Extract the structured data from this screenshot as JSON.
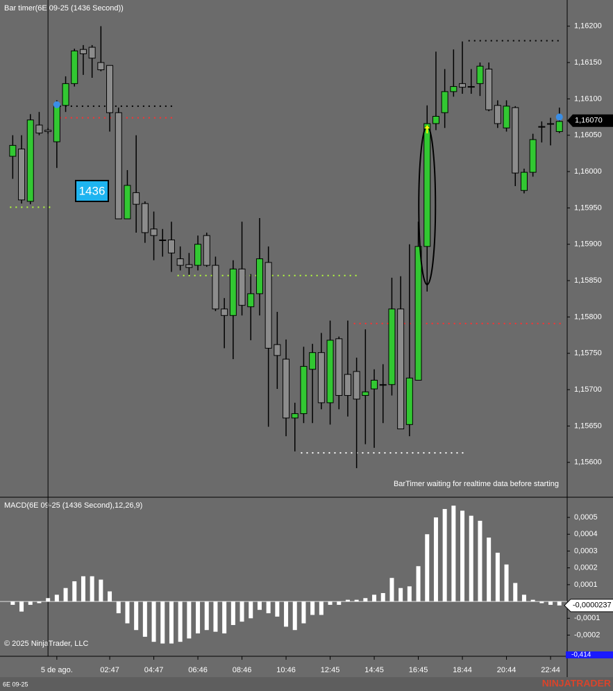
{
  "chart_data": [
    {
      "type": "candlestick",
      "title": "Bar timer(6E 09-25 (1436 Second))",
      "categories": [
        null,
        null,
        null,
        null,
        null,
        "5 de ago.",
        null,
        null,
        null,
        null,
        null,
        "02:47",
        null,
        null,
        null,
        null,
        "04:47",
        null,
        null,
        null,
        null,
        "06:46",
        null,
        null,
        null,
        null,
        "08:46",
        null,
        null,
        null,
        null,
        "10:46",
        null,
        null,
        null,
        null,
        "12:45",
        null,
        null,
        null,
        null,
        "14:45",
        null,
        null,
        null,
        null,
        "16:45",
        null,
        null,
        null,
        null,
        "18:44",
        null,
        null,
        null,
        null,
        "20:44",
        null,
        null,
        null,
        null,
        "22:44",
        null
      ],
      "open": [
        1.16021,
        1.16031,
        1.15959,
        1.16064,
        1.16057,
        1.16041,
        1.16091,
        1.16121,
        1.16168,
        1.16171,
        1.1615,
        1.16146,
        1.16081,
        1.15935,
        1.15971,
        1.15956,
        1.15921,
        1.15906,
        1.15906,
        1.1588,
        1.15872,
        1.15871,
        1.15912,
        1.15871,
        1.15811,
        1.15802,
        1.15866,
        1.15814,
        1.15832,
        1.15875,
        1.15762,
        1.15742,
        1.15661,
        1.15667,
        1.15728,
        1.15751,
        1.15682,
        1.1577,
        1.15721,
        1.15725,
        1.15692,
        1.15701,
        1.15707,
        1.15707,
        1.15811,
        1.15652,
        1.15713,
        1.15897,
        1.16066,
        1.16081,
        1.1611,
        1.16121,
        1.16117,
        1.16121,
        1.16141,
        1.16091,
        1.1606,
        1.16088,
        1.15974,
        1.15999,
        1.16062,
        1.16066,
        1.16055
      ],
      "high": [
        1.1605,
        1.1605,
        1.16079,
        1.16082,
        1.1606,
        1.16098,
        1.16131,
        1.16169,
        1.16174,
        1.16174,
        1.162,
        1.16146,
        1.16088,
        1.16002,
        1.1605,
        1.15959,
        1.15945,
        1.15921,
        1.15931,
        1.15897,
        1.15888,
        1.15912,
        1.15916,
        1.15883,
        1.15826,
        1.15878,
        1.15931,
        1.15859,
        1.15936,
        1.15897,
        1.15807,
        1.15769,
        1.15682,
        1.15759,
        1.15763,
        1.15778,
        1.15795,
        1.15773,
        1.15795,
        1.15744,
        1.15783,
        1.15728,
        1.15735,
        1.15854,
        1.15856,
        1.159,
        1.15931,
        1.16091,
        1.16165,
        1.16141,
        1.16168,
        1.16179,
        1.16141,
        1.1615,
        1.1615,
        1.16098,
        1.16098,
        1.1609,
        1.16004,
        1.16052,
        1.16069,
        1.16074,
        1.16088
      ],
      "low": [
        1.1599,
        1.15956,
        1.15955,
        1.1605,
        1.16052,
        1.16005,
        1.16082,
        1.16117,
        1.16133,
        1.16129,
        1.16138,
        1.16055,
        1.15935,
        1.15935,
        1.15916,
        1.15902,
        1.15878,
        1.15883,
        1.15862,
        1.15864,
        1.15858,
        1.15864,
        1.15869,
        1.15808,
        1.15757,
        1.15742,
        1.15802,
        1.15768,
        1.15802,
        1.15649,
        1.15701,
        1.15636,
        1.15615,
        1.15654,
        1.15654,
        1.15673,
        1.15652,
        1.15673,
        1.15663,
        1.15592,
        1.15625,
        1.1562,
        1.15654,
        1.15692,
        1.15646,
        1.15636,
        1.15713,
        1.15835,
        1.16057,
        1.1606,
        1.16103,
        1.16107,
        1.16107,
        1.16104,
        1.16083,
        1.1606,
        1.16055,
        1.1598,
        1.1597,
        1.15993,
        1.1604,
        1.16036,
        1.16053
      ],
      "close": [
        1.16036,
        1.15961,
        1.16071,
        1.16053,
        1.16055,
        1.16091,
        1.16121,
        1.16166,
        1.16162,
        1.16156,
        1.1614,
        1.16081,
        1.15935,
        1.15981,
        1.15955,
        1.15916,
        1.15912,
        1.15905,
        1.15888,
        1.15871,
        1.15868,
        1.159,
        1.15871,
        1.15811,
        1.15802,
        1.15866,
        1.15816,
        1.15832,
        1.1588,
        1.15757,
        1.15747,
        1.15661,
        1.15667,
        1.15732,
        1.15751,
        1.15682,
        1.15768,
        1.15692,
        1.15692,
        1.15687,
        1.15697,
        1.15713,
        1.15706,
        1.15811,
        1.15646,
        1.15716,
        1.15897,
        1.16066,
        1.16076,
        1.1611,
        1.16117,
        1.16116,
        1.16116,
        1.16145,
        1.16085,
        1.16066,
        1.1609,
        1.15998,
        1.15999,
        1.16044,
        1.16061,
        1.16065,
        1.16069
      ],
      "up_color": "#32c832",
      "down_color": "#8c8c8c",
      "ylim": [
        1.15552,
        1.16236
      ],
      "yticks": [
        {
          "value": 1.162,
          "label": "1,16200"
        },
        {
          "value": 1.1615,
          "label": "1,16150"
        },
        {
          "value": 1.161,
          "label": "1,16100"
        },
        {
          "value": 1.1605,
          "label": "1,16050"
        },
        {
          "value": 1.16,
          "label": "1,16000"
        },
        {
          "value": 1.1595,
          "label": "1,15950"
        },
        {
          "value": 1.159,
          "label": "1,15900"
        },
        {
          "value": 1.1585,
          "label": "1,15850"
        },
        {
          "value": 1.158,
          "label": "1,15800"
        },
        {
          "value": 1.1575,
          "label": "1,15750"
        },
        {
          "value": 1.157,
          "label": "1,15700"
        },
        {
          "value": 1.1565,
          "label": "1,15650"
        },
        {
          "value": 1.156,
          "label": "1,15600"
        }
      ],
      "levels": [
        {
          "value": 1.15951,
          "color": "#b4ff3c",
          "from": 0,
          "to": 4
        },
        {
          "value": 1.1609,
          "color": "#000000",
          "from": 5,
          "to": 18
        },
        {
          "value": 1.16074,
          "color": "#ff3030",
          "from": 5,
          "to": 18
        },
        {
          "value": 1.15857,
          "color": "#b4ff3c",
          "from": 19,
          "to": 39
        },
        {
          "value": 1.15613,
          "color": "#ffffff",
          "from": 33,
          "to": 51
        },
        {
          "value": 1.15791,
          "color": "#ff3030",
          "from": 39,
          "to": 62
        },
        {
          "value": 1.1618,
          "color": "#000000",
          "from": 52,
          "to": 62
        }
      ],
      "markers": [
        {
          "index": 5,
          "value": 1.16092
        },
        {
          "index": 62,
          "value": 1.16075
        }
      ],
      "marker_color": "#3a8ee6",
      "highlight_index": 47,
      "crosshair_index": 4,
      "last_price": {
        "value": 1.1607,
        "label": "1,16070"
      },
      "timer_label": "1436",
      "status": "BarTimer waiting for realtime data before starting"
    },
    {
      "type": "bar",
      "title": "MACD(6E 09-25 (1436 Second),12,26,9)",
      "color": "#ffffff",
      "values": [
        -2e-05,
        -6e-05,
        -2e-05,
        -1e-05,
        2e-05,
        4e-05,
        8e-05,
        0.00012,
        0.00015,
        0.00015,
        0.00013,
        6e-05,
        -7e-05,
        -0.00013,
        -0.00017,
        -0.00021,
        -0.00024,
        -0.00025,
        -0.00025,
        -0.00024,
        -0.00022,
        -0.00019,
        -0.00017,
        -0.00018,
        -0.00019,
        -0.00014,
        -0.00012,
        -0.0001,
        -5e-05,
        -7e-05,
        -9e-05,
        -0.00015,
        -0.00017,
        -0.00013,
        -8e-05,
        -8e-05,
        -2e-05,
        -2e-05,
        1e-05,
        1e-05,
        2e-05,
        4e-05,
        5e-05,
        0.00014,
        8e-05,
        9e-05,
        0.00021,
        0.0004,
        0.0005,
        0.00055,
        0.00057,
        0.00054,
        0.00051,
        0.00048,
        0.00038,
        0.00029,
        0.00022,
        0.00011,
        4e-05,
        1e-05,
        -1e-05,
        -2e-05,
        -2.37e-05
      ],
      "ylim": [
        -0.000326,
        0.00062
      ],
      "yticks": [
        {
          "value": 0.0005,
          "label": "0,0005"
        },
        {
          "value": 0.0004,
          "label": "0,0004"
        },
        {
          "value": 0.0003,
          "label": "0,0003"
        },
        {
          "value": 0.0002,
          "label": "0,0002"
        },
        {
          "value": 0.0001,
          "label": "0,0001"
        },
        {
          "value": -0.0001,
          "label": "-0,0001"
        },
        {
          "value": -0.0002,
          "label": "-0,0002"
        }
      ],
      "last_value": {
        "value": -2.37e-05,
        "label": "-0,0000237"
      },
      "extra_label": "-0,414"
    }
  ],
  "footer": {
    "copyright": "© 2025 NinjaTrader, LLC",
    "symbol": "6E 09-25",
    "brand": "NINJATRADER"
  }
}
